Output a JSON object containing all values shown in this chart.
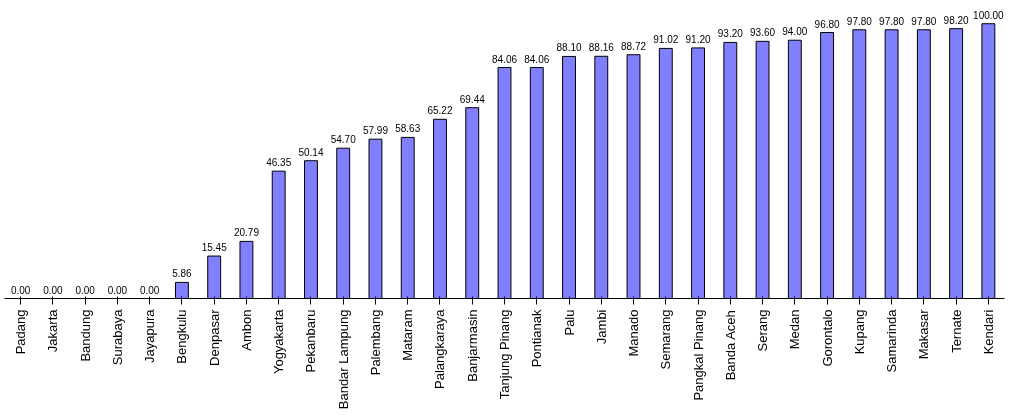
{
  "chart_data": {
    "type": "bar",
    "categories": [
      "Padang",
      "Jakarta",
      "Bandung",
      "Surabaya",
      "Jayapura",
      "Bengkulu",
      "Denpasar",
      "Ambon",
      "Yogyakarta",
      "Pekanbaru",
      "Bandar Lampung",
      "Palembang",
      "Mataram",
      "Palangkaraya",
      "Banjarmasin",
      "Tanjung Pinang",
      "Pontianak",
      "Palu",
      "Jambi",
      "Manado",
      "Semarang",
      "Pangkal Pinang",
      "Banda Aceh",
      "Serang",
      "Medan",
      "Gorontalo",
      "Kupang",
      "Samarinda",
      "Makasar",
      "Ternate",
      "Kendari"
    ],
    "values": [
      0,
      0,
      0,
      0,
      0,
      5.86,
      15.45,
      20.79,
      46.35,
      50.14,
      54.7,
      57.99,
      58.63,
      65.22,
      69.44,
      84.06,
      84.06,
      88.1,
      88.16,
      88.72,
      91.02,
      91.2,
      93.2,
      93.6,
      94.0,
      96.8,
      97.8,
      97.8,
      97.8,
      98.2,
      100.0
    ],
    "value_labels": [
      "0.00",
      "0.00",
      "0.00",
      "0.00",
      "0.00",
      "5.86",
      "15.45",
      "20.79",
      "46.35",
      "50.14",
      "54.70",
      "57.99",
      "58.63",
      "65.22",
      "69.44",
      "84.06",
      "84.06",
      "88.10",
      "88.16",
      "88.72",
      "91.02",
      "91.20",
      "93.20",
      "93.60",
      "94.00",
      "96.80",
      "97.80",
      "97.80",
      "97.80",
      "98.20",
      "100.00"
    ],
    "color": "#8080ff",
    "grid": false
  }
}
